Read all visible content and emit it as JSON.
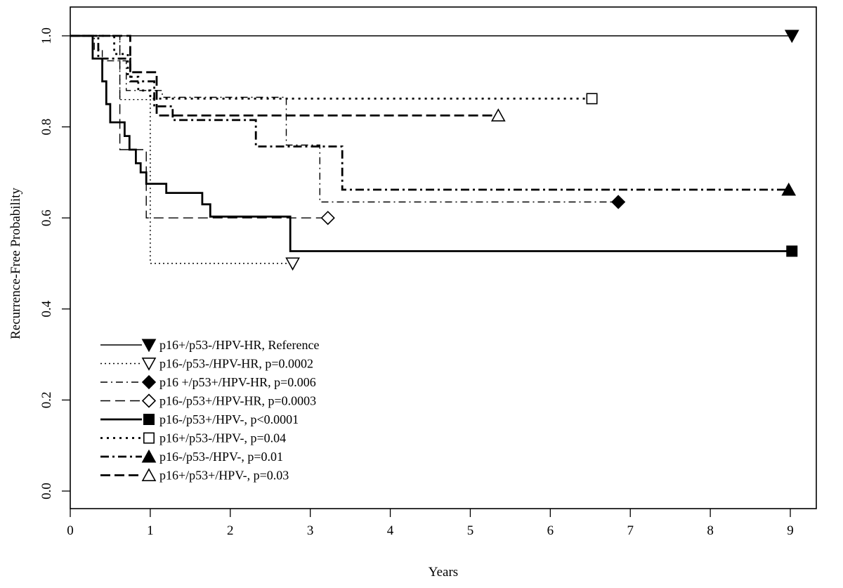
{
  "chart_data": {
    "type": "line",
    "title": "",
    "xlabel": "Years",
    "ylabel": "Recurrence-Free Probability",
    "xlim": [
      0,
      9.5
    ],
    "ylim": [
      -0.04,
      1.04
    ],
    "x_ticks": [
      "0",
      "1",
      "2",
      "3",
      "4",
      "5",
      "6",
      "7",
      "8",
      "9"
    ],
    "y_ticks": [
      "0.0",
      "0.2",
      "0.4",
      "0.6",
      "0.8",
      "1.0"
    ],
    "grid": false,
    "legend_position": "bottom-left",
    "series": [
      {
        "name": "p16+/p53-/HPV-HR, Reference",
        "style": "solid-thin",
        "marker": "triangle-down-filled",
        "steps": [
          [
            0,
            1.0
          ],
          [
            9.02,
            1.0
          ]
        ]
      },
      {
        "name": "p16-/p53-/HPV-HR, p=0.0002",
        "style": "dotted-thin",
        "marker": "triangle-down-open",
        "steps": [
          [
            0,
            1.0
          ],
          [
            0.62,
            1.0
          ],
          [
            0.62,
            0.86
          ],
          [
            1.0,
            0.86
          ],
          [
            1.0,
            0.5
          ],
          [
            2.78,
            0.5
          ]
        ]
      },
      {
        "name": "p16 +/p53+/HPV-HR, p=0.006",
        "style": "dashdot-thin",
        "marker": "diamond-filled",
        "steps": [
          [
            0,
            1.0
          ],
          [
            0.3,
            1.0
          ],
          [
            0.3,
            0.97
          ],
          [
            0.4,
            0.97
          ],
          [
            0.4,
            0.945
          ],
          [
            0.7,
            0.945
          ],
          [
            0.7,
            0.88
          ],
          [
            1.15,
            0.88
          ],
          [
            1.15,
            0.865
          ],
          [
            2.7,
            0.865
          ],
          [
            2.7,
            0.76
          ],
          [
            3.12,
            0.76
          ],
          [
            3.12,
            0.635
          ],
          [
            6.85,
            0.635
          ]
        ]
      },
      {
        "name": "p16-/p53+/HPV-HR, p=0.0003",
        "style": "dashed-thin",
        "marker": "diamond-open",
        "steps": [
          [
            0,
            1.0
          ],
          [
            0.62,
            1.0
          ],
          [
            0.62,
            0.75
          ],
          [
            0.95,
            0.75
          ],
          [
            0.95,
            0.6
          ],
          [
            3.22,
            0.6
          ]
        ]
      },
      {
        "name": "p16-/p53+/HPV-, p<0.0001",
        "style": "solid-thick",
        "marker": "square-filled",
        "steps": [
          [
            0,
            1.0
          ],
          [
            0.28,
            1.0
          ],
          [
            0.28,
            0.95
          ],
          [
            0.4,
            0.95
          ],
          [
            0.4,
            0.9
          ],
          [
            0.45,
            0.9
          ],
          [
            0.45,
            0.85
          ],
          [
            0.5,
            0.85
          ],
          [
            0.5,
            0.81
          ],
          [
            0.68,
            0.81
          ],
          [
            0.68,
            0.78
          ],
          [
            0.74,
            0.78
          ],
          [
            0.74,
            0.75
          ],
          [
            0.82,
            0.75
          ],
          [
            0.82,
            0.72
          ],
          [
            0.88,
            0.72
          ],
          [
            0.88,
            0.7
          ],
          [
            0.95,
            0.7
          ],
          [
            0.95,
            0.675
          ],
          [
            1.2,
            0.675
          ],
          [
            1.2,
            0.655
          ],
          [
            1.65,
            0.655
          ],
          [
            1.65,
            0.63
          ],
          [
            1.75,
            0.63
          ],
          [
            1.75,
            0.603
          ],
          [
            2.75,
            0.603
          ],
          [
            2.75,
            0.527
          ],
          [
            9.02,
            0.527
          ]
        ]
      },
      {
        "name": "p16+/p53-/HPV-, p=0.04",
        "style": "dotted-thick",
        "marker": "square-open",
        "steps": [
          [
            0,
            1.0
          ],
          [
            0.55,
            1.0
          ],
          [
            0.55,
            0.96
          ],
          [
            0.72,
            0.96
          ],
          [
            0.72,
            0.91
          ],
          [
            0.85,
            0.91
          ],
          [
            0.85,
            0.88
          ],
          [
            1.0,
            0.88
          ],
          [
            1.0,
            0.862
          ],
          [
            6.52,
            0.862
          ]
        ]
      },
      {
        "name": "p16-/p53-/HPV-, p=0.01",
        "style": "dashdot-thick",
        "marker": "triangle-up-filled",
        "steps": [
          [
            0,
            1.0
          ],
          [
            0.35,
            1.0
          ],
          [
            0.35,
            0.95
          ],
          [
            0.75,
            0.95
          ],
          [
            0.75,
            0.9
          ],
          [
            1.05,
            0.9
          ],
          [
            1.05,
            0.845
          ],
          [
            1.28,
            0.845
          ],
          [
            1.28,
            0.815
          ],
          [
            2.32,
            0.815
          ],
          [
            2.32,
            0.757
          ],
          [
            3.4,
            0.757
          ],
          [
            3.4,
            0.662
          ],
          [
            8.98,
            0.662
          ]
        ]
      },
      {
        "name": "p16+/p53+/HPV-, p=0.03",
        "style": "dashed-thick",
        "marker": "triangle-up-open",
        "steps": [
          [
            0,
            1.0
          ],
          [
            0.75,
            1.0
          ],
          [
            0.75,
            0.92
          ],
          [
            1.08,
            0.92
          ],
          [
            1.08,
            0.825
          ],
          [
            5.35,
            0.825
          ]
        ]
      }
    ]
  }
}
